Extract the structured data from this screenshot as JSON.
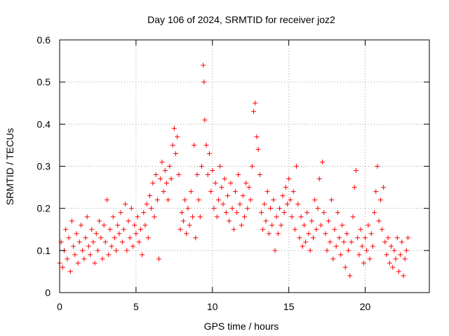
{
  "chart_data": {
    "type": "scatter",
    "title": "Day 106 of 2024, SRMTID for receiver joz2",
    "xlabel": "GPS time / hours",
    "ylabel": "SRMTID / TECUs",
    "xlim": [
      0,
      24.2
    ],
    "ylim": [
      0,
      0.6
    ],
    "x_ticks": [
      0,
      5,
      10,
      15,
      20
    ],
    "y_ticks": [
      0,
      0.1,
      0.2,
      0.3,
      0.4,
      0.5,
      0.6
    ],
    "x_tick_labels": [
      "0",
      "5",
      "10",
      "15",
      "20"
    ],
    "y_tick_labels": [
      "0",
      "0.1",
      "0.2",
      "0.3",
      "0.4",
      "0.5",
      "0.6"
    ],
    "grid": true,
    "marker": "+",
    "color": "#ff0000",
    "series": [
      {
        "name": "SRMTID",
        "points": [
          [
            0.0,
            0.07
          ],
          [
            0.1,
            0.12
          ],
          [
            0.2,
            0.06
          ],
          [
            0.3,
            0.1
          ],
          [
            0.4,
            0.15
          ],
          [
            0.5,
            0.08
          ],
          [
            0.6,
            0.13
          ],
          [
            0.7,
            0.05
          ],
          [
            0.8,
            0.17
          ],
          [
            0.9,
            0.11
          ],
          [
            1.0,
            0.09
          ],
          [
            1.1,
            0.14
          ],
          [
            1.2,
            0.07
          ],
          [
            1.3,
            0.12
          ],
          [
            1.4,
            0.16
          ],
          [
            1.5,
            0.1
          ],
          [
            1.6,
            0.08
          ],
          [
            1.7,
            0.13
          ],
          [
            1.8,
            0.18
          ],
          [
            1.9,
            0.11
          ],
          [
            2.0,
            0.09
          ],
          [
            2.1,
            0.15
          ],
          [
            2.2,
            0.12
          ],
          [
            2.3,
            0.07
          ],
          [
            2.4,
            0.14
          ],
          [
            2.5,
            0.1
          ],
          [
            2.6,
            0.17
          ],
          [
            2.7,
            0.13
          ],
          [
            2.8,
            0.08
          ],
          [
            2.9,
            0.16
          ],
          [
            3.0,
            0.12
          ],
          [
            3.1,
            0.22
          ],
          [
            3.2,
            0.09
          ],
          [
            3.3,
            0.15
          ],
          [
            3.4,
            0.11
          ],
          [
            3.5,
            0.18
          ],
          [
            3.6,
            0.13
          ],
          [
            3.7,
            0.1
          ],
          [
            3.8,
            0.16
          ],
          [
            3.9,
            0.14
          ],
          [
            4.0,
            0.19
          ],
          [
            4.1,
            0.12
          ],
          [
            4.2,
            0.15
          ],
          [
            4.3,
            0.21
          ],
          [
            4.4,
            0.1
          ],
          [
            4.5,
            0.17
          ],
          [
            4.6,
            0.13
          ],
          [
            4.7,
            0.2
          ],
          [
            4.8,
            0.11
          ],
          [
            4.9,
            0.16
          ],
          [
            5.0,
            0.14
          ],
          [
            5.1,
            0.18
          ],
          [
            5.2,
            0.12
          ],
          [
            5.3,
            0.15
          ],
          [
            5.4,
            0.09
          ],
          [
            5.5,
            0.19
          ],
          [
            5.6,
            0.16
          ],
          [
            5.7,
            0.21
          ],
          [
            5.8,
            0.13
          ],
          [
            5.9,
            0.23
          ],
          [
            6.0,
            0.2
          ],
          [
            6.1,
            0.26
          ],
          [
            6.2,
            0.18
          ],
          [
            6.3,
            0.28
          ],
          [
            6.4,
            0.22
          ],
          [
            6.5,
            0.08
          ],
          [
            6.6,
            0.27
          ],
          [
            6.7,
            0.31
          ],
          [
            6.8,
            0.24
          ],
          [
            6.9,
            0.29
          ],
          [
            7.0,
            0.26
          ],
          [
            7.1,
            0.22
          ],
          [
            7.2,
            0.3
          ],
          [
            7.3,
            0.27
          ],
          [
            7.4,
            0.35
          ],
          [
            7.5,
            0.39
          ],
          [
            7.6,
            0.33
          ],
          [
            7.7,
            0.37
          ],
          [
            7.8,
            0.28
          ],
          [
            7.9,
            0.15
          ],
          [
            8.0,
            0.19
          ],
          [
            8.1,
            0.17
          ],
          [
            8.2,
            0.22
          ],
          [
            8.3,
            0.14
          ],
          [
            8.4,
            0.2
          ],
          [
            8.5,
            0.16
          ],
          [
            8.6,
            0.24
          ],
          [
            8.7,
            0.18
          ],
          [
            8.8,
            0.35
          ],
          [
            8.9,
            0.13
          ],
          [
            9.0,
            0.28
          ],
          [
            9.1,
            0.22
          ],
          [
            9.2,
            0.18
          ],
          [
            9.3,
            0.3
          ],
          [
            9.4,
            0.54
          ],
          [
            9.45,
            0.5
          ],
          [
            9.5,
            0.41
          ],
          [
            9.6,
            0.35
          ],
          [
            9.7,
            0.28
          ],
          [
            9.8,
            0.33
          ],
          [
            9.9,
            0.24
          ],
          [
            10.0,
            0.29
          ],
          [
            10.1,
            0.2
          ],
          [
            10.2,
            0.26
          ],
          [
            10.3,
            0.18
          ],
          [
            10.4,
            0.22
          ],
          [
            10.5,
            0.3
          ],
          [
            10.6,
            0.25
          ],
          [
            10.7,
            0.21
          ],
          [
            10.8,
            0.27
          ],
          [
            10.9,
            0.19
          ],
          [
            11.0,
            0.23
          ],
          [
            11.1,
            0.17
          ],
          [
            11.2,
            0.26
          ],
          [
            11.3,
            0.2
          ],
          [
            11.4,
            0.15
          ],
          [
            11.5,
            0.24
          ],
          [
            11.6,
            0.19
          ],
          [
            11.7,
            0.28
          ],
          [
            11.8,
            0.21
          ],
          [
            11.9,
            0.16
          ],
          [
            12.0,
            0.23
          ],
          [
            12.1,
            0.18
          ],
          [
            12.2,
            0.26
          ],
          [
            12.3,
            0.2
          ],
          [
            12.4,
            0.25
          ],
          [
            12.5,
            0.22
          ],
          [
            12.6,
            0.3
          ],
          [
            12.7,
            0.43
          ],
          [
            12.8,
            0.45
          ],
          [
            12.9,
            0.37
          ],
          [
            13.0,
            0.34
          ],
          [
            13.1,
            0.28
          ],
          [
            13.2,
            0.19
          ],
          [
            13.3,
            0.15
          ],
          [
            13.4,
            0.21
          ],
          [
            13.5,
            0.17
          ],
          [
            13.6,
            0.24
          ],
          [
            13.7,
            0.14
          ],
          [
            13.8,
            0.2
          ],
          [
            13.9,
            0.16
          ],
          [
            14.0,
            0.22
          ],
          [
            14.1,
            0.1
          ],
          [
            14.2,
            0.18
          ],
          [
            14.3,
            0.14
          ],
          [
            14.4,
            0.2
          ],
          [
            14.5,
            0.16
          ],
          [
            14.6,
            0.23
          ],
          [
            14.7,
            0.19
          ],
          [
            14.8,
            0.25
          ],
          [
            14.9,
            0.21
          ],
          [
            15.0,
            0.27
          ],
          [
            15.1,
            0.22
          ],
          [
            15.2,
            0.18
          ],
          [
            15.3,
            0.24
          ],
          [
            15.4,
            0.15
          ],
          [
            15.5,
            0.3
          ],
          [
            15.6,
            0.21
          ],
          [
            15.7,
            0.13
          ],
          [
            15.8,
            0.18
          ],
          [
            15.9,
            0.11
          ],
          [
            16.0,
            0.16
          ],
          [
            16.1,
            0.12
          ],
          [
            16.2,
            0.19
          ],
          [
            16.3,
            0.14
          ],
          [
            16.4,
            0.1
          ],
          [
            16.5,
            0.17
          ],
          [
            16.6,
            0.13
          ],
          [
            16.7,
            0.22
          ],
          [
            16.8,
            0.15
          ],
          [
            16.9,
            0.2
          ],
          [
            17.0,
            0.27
          ],
          [
            17.1,
            0.16
          ],
          [
            17.2,
            0.31
          ],
          [
            17.3,
            0.19
          ],
          [
            17.4,
            0.14
          ],
          [
            17.5,
            0.1
          ],
          [
            17.6,
            0.17
          ],
          [
            17.7,
            0.12
          ],
          [
            17.8,
            0.22
          ],
          [
            17.9,
            0.08
          ],
          [
            18.0,
            0.15
          ],
          [
            18.1,
            0.11
          ],
          [
            18.2,
            0.19
          ],
          [
            18.3,
            0.13
          ],
          [
            18.4,
            0.09
          ],
          [
            18.5,
            0.16
          ],
          [
            18.6,
            0.12
          ],
          [
            18.7,
            0.06
          ],
          [
            18.8,
            0.14
          ],
          [
            18.9,
            0.1
          ],
          [
            19.0,
            0.04
          ],
          [
            19.1,
            0.12
          ],
          [
            19.2,
            0.18
          ],
          [
            19.3,
            0.25
          ],
          [
            19.4,
            0.29
          ],
          [
            19.5,
            0.13
          ],
          [
            19.6,
            0.09
          ],
          [
            19.7,
            0.15
          ],
          [
            19.8,
            0.11
          ],
          [
            19.9,
            0.07
          ],
          [
            20.0,
            0.13
          ],
          [
            20.1,
            0.1
          ],
          [
            20.2,
            0.16
          ],
          [
            20.3,
            0.08
          ],
          [
            20.4,
            0.14
          ],
          [
            20.5,
            0.11
          ],
          [
            20.6,
            0.19
          ],
          [
            20.7,
            0.24
          ],
          [
            20.8,
            0.3
          ],
          [
            20.9,
            0.17
          ],
          [
            21.0,
            0.22
          ],
          [
            21.1,
            0.15
          ],
          [
            21.2,
            0.25
          ],
          [
            21.3,
            0.12
          ],
          [
            21.4,
            0.09
          ],
          [
            21.5,
            0.13
          ],
          [
            21.6,
            0.07
          ],
          [
            21.7,
            0.11
          ],
          [
            21.8,
            0.06
          ],
          [
            21.9,
            0.1
          ],
          [
            22.0,
            0.08
          ],
          [
            22.1,
            0.13
          ],
          [
            22.2,
            0.05
          ],
          [
            22.3,
            0.09
          ],
          [
            22.4,
            0.12
          ],
          [
            22.5,
            0.04
          ],
          [
            22.6,
            0.08
          ],
          [
            22.7,
            0.1
          ],
          [
            22.8,
            0.13
          ]
        ]
      }
    ]
  }
}
